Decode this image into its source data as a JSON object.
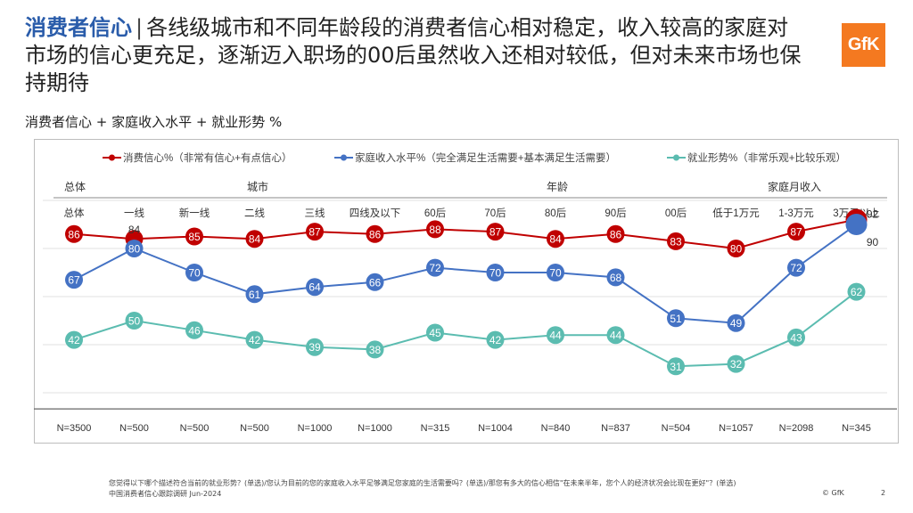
{
  "header": {
    "title_accent": "消费者信心",
    "title_separator": "|",
    "title_text": "各线级城市和不同年龄段的消费者信心相对稳定，收入较高的家庭对市场的信心更充足，逐渐迈入职场的00后虽然收入还相对较低，但对未来市场也保持期待",
    "logo_text": "GfK",
    "subtitle": "消费者信心 + 家庭收入水平 + 就业形势 %"
  },
  "colors": {
    "red": "#c00000",
    "blue": "#4472c4",
    "teal": "#5bbcb0",
    "gfk_orange": "#f47920"
  },
  "chart_data": {
    "type": "line",
    "title": "消费者信心 + 家庭收入水平 + 就业形势 %",
    "groups": [
      "总体",
      "城市",
      "年龄",
      "家庭月收入"
    ],
    "categories": [
      "总体",
      "一线",
      "新一线",
      "二线",
      "三线",
      "四线及以下",
      "60后",
      "70后",
      "80后",
      "90后",
      "00后",
      "低于1万元",
      "1-3万元",
      "3万元以上"
    ],
    "sample_sizes": [
      "N=3500",
      "N=500",
      "N=500",
      "N=500",
      "N=1000",
      "N=1000",
      "N=315",
      "N=1004",
      "N=840",
      "N=837",
      "N=504",
      "N=1057",
      "N=2098",
      "N=345"
    ],
    "ylim": [
      0,
      100
    ],
    "series": [
      {
        "name": "消费信心%（非常有信心+有点信心）",
        "color": "#c00000",
        "values": [
          86,
          84,
          85,
          84,
          87,
          86,
          88,
          87,
          84,
          86,
          83,
          80,
          87,
          92
        ]
      },
      {
        "name": "家庭收入水平%（完全满足生活需要+基本满足生活需要）",
        "color": "#4472c4",
        "values": [
          67,
          80,
          70,
          61,
          64,
          66,
          72,
          70,
          70,
          68,
          51,
          49,
          72,
          90
        ]
      },
      {
        "name": "就业形势%（非常乐观+比较乐观）",
        "color": "#5bbcb0",
        "values": [
          42,
          50,
          46,
          42,
          39,
          38,
          45,
          42,
          44,
          44,
          31,
          32,
          43,
          62
        ]
      }
    ]
  },
  "footer": {
    "line1": "您觉得以下哪个描述符合当前的就业形势？(单选)/您认为目前的您的家庭收入水平足够满足您家庭的生活需要吗？(单选)/那您有多大的信心相信\"在未来半年，您个人的经济状况会比现在更好\"？(单选)",
    "line2": "中国消费者信心跟踪调研 Jun-2024",
    "copyright": "© GfK",
    "page_number": "2"
  }
}
